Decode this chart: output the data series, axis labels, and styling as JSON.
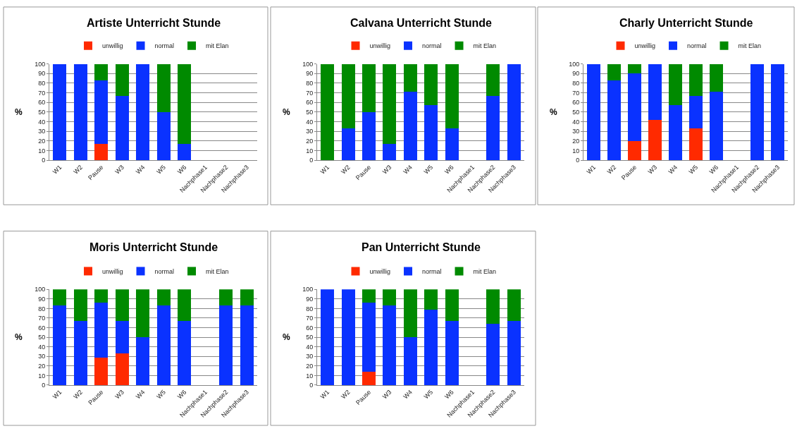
{
  "chart_data": [
    {
      "type": "bar",
      "title": "Artiste Unterricht Stunde",
      "ylabel": "%",
      "stacked": true,
      "grid": "y",
      "legend": "top",
      "categories": [
        "W1",
        "W2",
        "Pause",
        "W3",
        "W4",
        "W5",
        "W6",
        "Nachphase1",
        "Nachphase2",
        "Nachphase3"
      ],
      "ylim": [
        0,
        100
      ],
      "yticks": [
        0,
        10,
        20,
        30,
        40,
        50,
        60,
        70,
        80,
        90,
        100
      ],
      "series": [
        {
          "name": "unwillig",
          "color": "#ff2a00",
          "values": [
            0,
            0,
            17,
            0,
            0,
            0,
            0,
            null,
            null,
            null
          ]
        },
        {
          "name": "normal",
          "color": "#0a32ff",
          "values": [
            100,
            100,
            66,
            67,
            100,
            50,
            17,
            null,
            null,
            null
          ]
        },
        {
          "name": "mit Elan",
          "color": "#008a00",
          "values": [
            0,
            0,
            17,
            33,
            0,
            50,
            83,
            null,
            null,
            null
          ]
        }
      ]
    },
    {
      "type": "bar",
      "title": "Calvana Unterricht Stunde",
      "ylabel": "%",
      "stacked": true,
      "grid": "y",
      "legend": "top",
      "categories": [
        "W1",
        "W2",
        "Pause",
        "W3",
        "W4",
        "W5",
        "W6",
        "Nachphase1",
        "Nachphase2",
        "Nachphase3"
      ],
      "ylim": [
        0,
        100
      ],
      "yticks": [
        0,
        10,
        20,
        30,
        40,
        50,
        60,
        70,
        80,
        90,
        100
      ],
      "series": [
        {
          "name": "unwillig",
          "color": "#ff2a00",
          "values": [
            0,
            0,
            0,
            0,
            0,
            0,
            0,
            null,
            0,
            0
          ]
        },
        {
          "name": "normal",
          "color": "#0a32ff",
          "values": [
            0,
            33,
            50,
            17,
            71,
            57,
            33,
            null,
            67,
            100
          ]
        },
        {
          "name": "mit Elan",
          "color": "#008a00",
          "values": [
            100,
            67,
            50,
            83,
            29,
            43,
            67,
            null,
            33,
            0
          ]
        }
      ]
    },
    {
      "type": "bar",
      "title": "Charly Unterricht Stunde",
      "ylabel": "%",
      "stacked": true,
      "grid": "y",
      "legend": "top",
      "categories": [
        "W1",
        "W2",
        "Pause",
        "W3",
        "W4",
        "W5",
        "W6",
        "Nachphase1",
        "Nachphase2",
        "Nachphase3"
      ],
      "ylim": [
        0,
        100
      ],
      "yticks": [
        0,
        10,
        20,
        30,
        40,
        50,
        60,
        70,
        80,
        90,
        100
      ],
      "series": [
        {
          "name": "unwillig",
          "color": "#ff2a00",
          "values": [
            0,
            0,
            20,
            42,
            0,
            33,
            0,
            null,
            0,
            0
          ]
        },
        {
          "name": "normal",
          "color": "#0a32ff",
          "values": [
            100,
            83,
            70,
            58,
            57,
            34,
            71,
            null,
            100,
            100
          ]
        },
        {
          "name": "mit Elan",
          "color": "#008a00",
          "values": [
            0,
            17,
            10,
            0,
            43,
            33,
            29,
            null,
            0,
            0
          ]
        }
      ]
    },
    {
      "type": "bar",
      "title": "Moris Unterricht Stunde",
      "ylabel": "%",
      "stacked": true,
      "grid": "y",
      "legend": "top",
      "categories": [
        "W1",
        "W2",
        "Pause",
        "W3",
        "W4",
        "W5",
        "W6",
        "Nachphase1",
        "Nachphase2",
        "Nachphase3"
      ],
      "ylim": [
        0,
        100
      ],
      "yticks": [
        0,
        10,
        20,
        30,
        40,
        50,
        60,
        70,
        80,
        90,
        100
      ],
      "series": [
        {
          "name": "unwillig",
          "color": "#ff2a00",
          "values": [
            0,
            0,
            29,
            33,
            0,
            0,
            0,
            null,
            0,
            0
          ]
        },
        {
          "name": "normal",
          "color": "#0a32ff",
          "values": [
            83,
            67,
            57,
            34,
            50,
            83,
            67,
            null,
            83,
            83
          ]
        },
        {
          "name": "mit Elan",
          "color": "#008a00",
          "values": [
            17,
            33,
            14,
            33,
            50,
            17,
            33,
            null,
            17,
            17
          ]
        }
      ]
    },
    {
      "type": "bar",
      "title": "Pan Unterricht Stunde",
      "ylabel": "%",
      "stacked": true,
      "grid": "y",
      "legend": "top",
      "categories": [
        "W1",
        "W2",
        "Pause",
        "W3",
        "W4",
        "W5",
        "W6",
        "Nachphase1",
        "Nachphase2",
        "Nachphase3"
      ],
      "ylim": [
        0,
        100
      ],
      "yticks": [
        0,
        10,
        20,
        30,
        40,
        50,
        60,
        70,
        80,
        90,
        100
      ],
      "series": [
        {
          "name": "unwillig",
          "color": "#ff2a00",
          "values": [
            0,
            0,
            14,
            0,
            0,
            0,
            0,
            null,
            0,
            0
          ]
        },
        {
          "name": "normal",
          "color": "#0a32ff",
          "values": [
            100,
            100,
            72,
            83,
            50,
            79,
            67,
            null,
            64,
            67
          ]
        },
        {
          "name": "mit Elan",
          "color": "#008a00",
          "values": [
            0,
            0,
            14,
            17,
            50,
            21,
            33,
            null,
            36,
            33
          ]
        }
      ]
    }
  ]
}
